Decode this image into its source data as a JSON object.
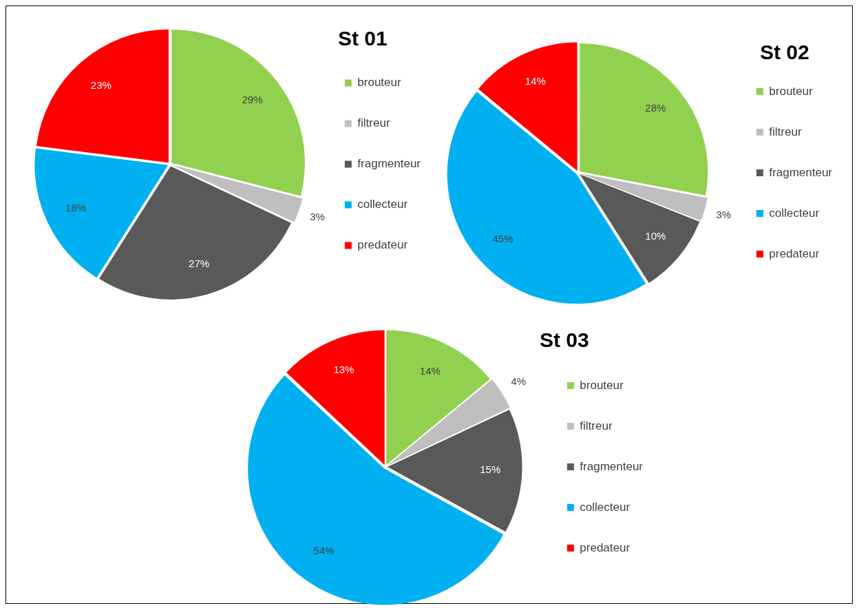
{
  "chart_data": [
    {
      "type": "pie",
      "title": "St 01",
      "categories": [
        "brouteur",
        "filtreur",
        "fragmenteur",
        "collecteur",
        "predateur"
      ],
      "values": [
        29,
        3,
        27,
        18,
        23
      ],
      "colors": [
        "#92d050",
        "#bfbfbf",
        "#595959",
        "#00b0f0",
        "#ff0000"
      ],
      "value_labels": [
        "29%",
        "3%",
        "27%",
        "18%",
        "23%"
      ],
      "legend": "right"
    },
    {
      "type": "pie",
      "title": "St 02",
      "categories": [
        "brouteur",
        "filtreur",
        "fragmenteur",
        "collecteur",
        "predateur"
      ],
      "values": [
        28,
        3,
        10,
        45,
        14
      ],
      "colors": [
        "#92d050",
        "#bfbfbf",
        "#595959",
        "#00b0f0",
        "#ff0000"
      ],
      "value_labels": [
        "28%",
        "3%",
        "10%",
        "45%",
        "14%"
      ],
      "legend": "right"
    },
    {
      "type": "pie",
      "title": "St 03",
      "categories": [
        "brouteur",
        "filtreur",
        "fragmenteur",
        "collecteur",
        "predateur"
      ],
      "values": [
        14,
        4,
        15,
        54,
        13
      ],
      "colors": [
        "#92d050",
        "#bfbfbf",
        "#595959",
        "#00b0f0",
        "#ff0000"
      ],
      "value_labels": [
        "14%",
        "4%",
        "15%",
        "54%",
        "13%"
      ],
      "legend": "right"
    }
  ]
}
